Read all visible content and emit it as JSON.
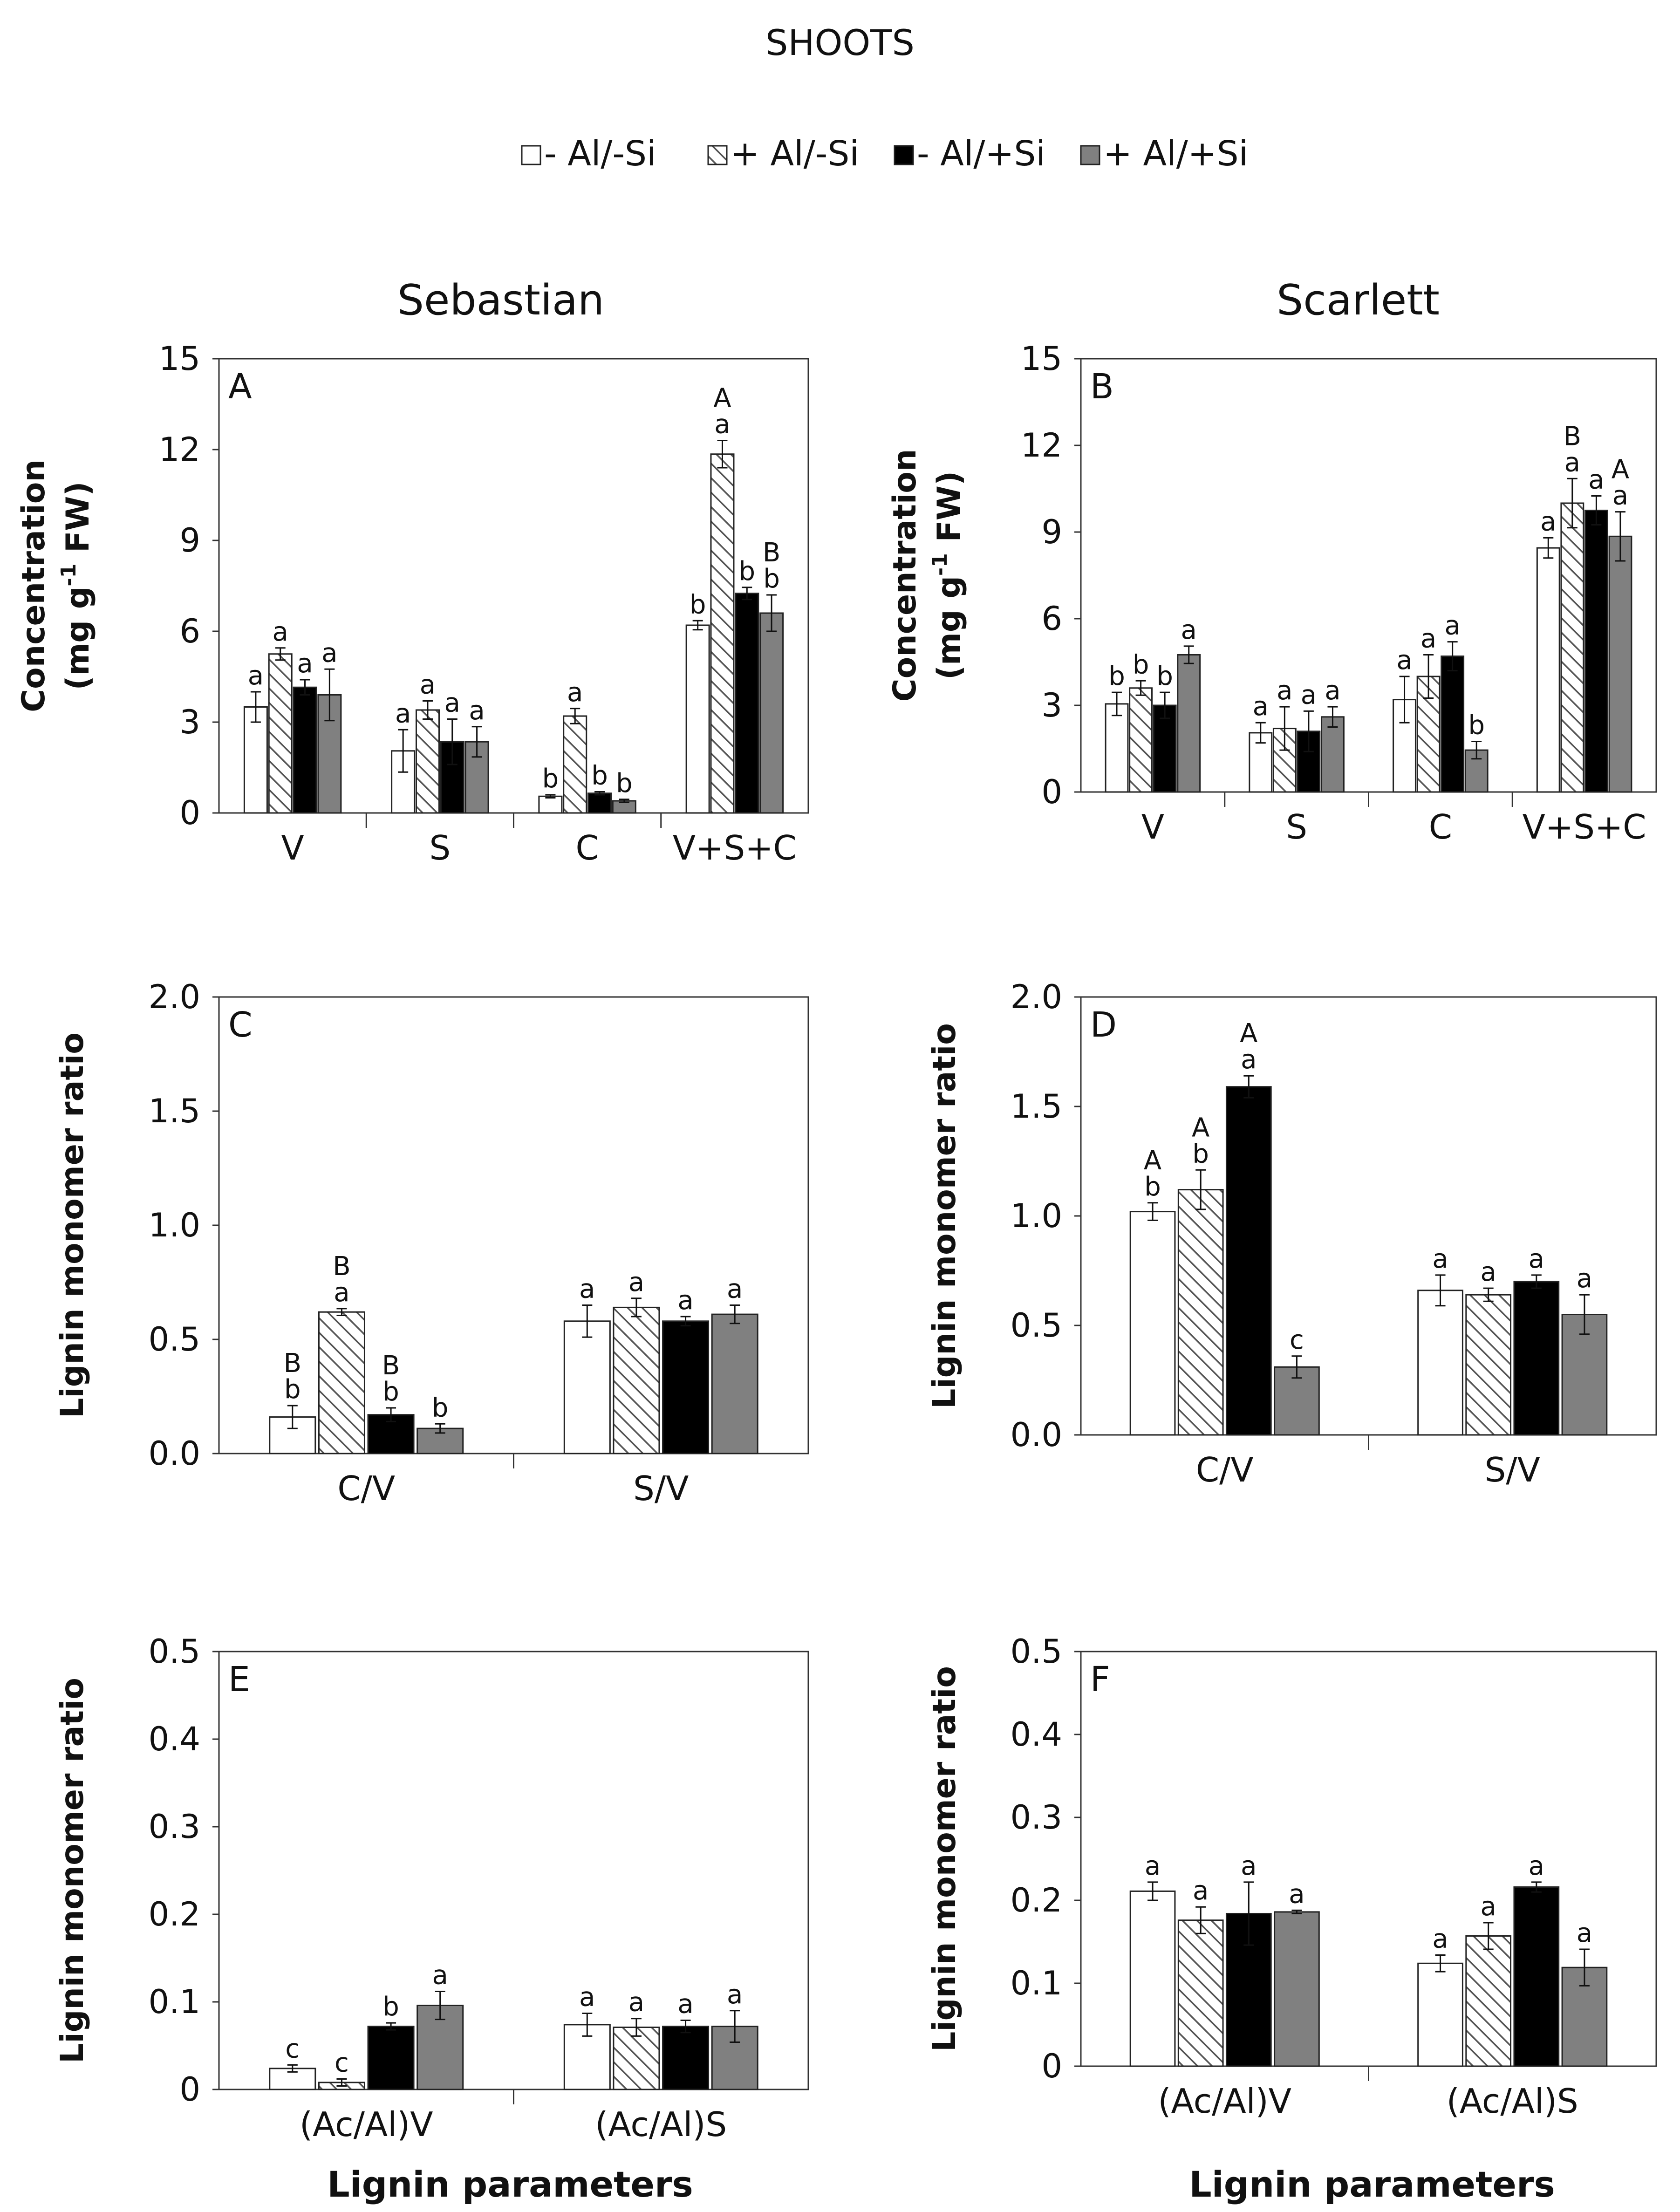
{
  "figure_title": "SHOOTS",
  "legend": [
    {
      "label": "- Al/-Si",
      "fill": "#ffffff",
      "pattern": false
    },
    {
      "label": "+ Al/-Si",
      "fill": "#ffffff",
      "pattern": true
    },
    {
      "label": "- Al/+Si",
      "fill": "#000000",
      "pattern": false
    },
    {
      "label": "+ Al/+Si",
      "fill": "#808080",
      "pattern": false
    }
  ],
  "column_titles": [
    "Sebastian",
    "Scarlett"
  ],
  "x_axis_label": "Lignin parameters",
  "chart_data": [
    {
      "panel": "A",
      "type": "bar",
      "ylabel_line1": "Concentration",
      "ylabel_line2_pre": "(mg g",
      "ylabel_sup": "-1",
      "ylabel_line2_post": " FW)",
      "ylim": [
        0,
        15
      ],
      "yticks": [
        "0",
        "3",
        "6",
        "9",
        "12",
        "15"
      ],
      "categories": [
        "V",
        "S",
        "C",
        "V+S+C"
      ],
      "series": [
        {
          "name": "- Al/-Si",
          "values": [
            3.5,
            2.05,
            0.55,
            6.2
          ],
          "errors": [
            0.5,
            0.7,
            0.05,
            0.15
          ],
          "letters": [
            "a",
            "a",
            "b",
            "b"
          ]
        },
        {
          "name": "+ Al/-Si",
          "values": [
            5.25,
            3.4,
            3.2,
            11.85
          ],
          "errors": [
            0.2,
            0.3,
            0.25,
            0.45
          ],
          "letters": [
            "a",
            "a",
            "a",
            "A\na"
          ]
        },
        {
          "name": "- Al/+Si",
          "values": [
            4.15,
            2.35,
            0.65,
            7.25
          ],
          "errors": [
            0.25,
            0.75,
            0.05,
            0.2
          ],
          "letters": [
            "a",
            "a",
            "b",
            "b"
          ]
        },
        {
          "name": "+ Al/+Si",
          "values": [
            3.9,
            2.35,
            0.4,
            6.6
          ],
          "errors": [
            0.85,
            0.5,
            0.05,
            0.6
          ],
          "letters": [
            "a",
            "a",
            "b",
            "B\nb"
          ]
        }
      ]
    },
    {
      "panel": "B",
      "type": "bar",
      "ylabel_line1": "Concentration",
      "ylabel_line2_pre": "(mg g",
      "ylabel_sup": "-1",
      "ylabel_line2_post": " FW)",
      "ylim": [
        0,
        15
      ],
      "yticks": [
        "0",
        "3",
        "6",
        "9",
        "12",
        "15"
      ],
      "categories": [
        "V",
        "S",
        "C",
        "V+S+C"
      ],
      "series": [
        {
          "name": "- Al/-Si",
          "values": [
            3.05,
            2.05,
            3.2,
            8.45
          ],
          "errors": [
            0.4,
            0.35,
            0.8,
            0.35
          ],
          "letters": [
            "b",
            "a",
            "a",
            "a"
          ]
        },
        {
          "name": "+ Al/-Si",
          "values": [
            3.6,
            2.2,
            4.0,
            10.0
          ],
          "errors": [
            0.25,
            0.75,
            0.75,
            0.85
          ],
          "letters": [
            "b",
            "a",
            "a",
            "B\na"
          ]
        },
        {
          "name": "- Al/+Si",
          "values": [
            3.0,
            2.1,
            4.7,
            9.75
          ],
          "errors": [
            0.45,
            0.7,
            0.5,
            0.5
          ],
          "letters": [
            "b",
            "a",
            "a",
            "a"
          ]
        },
        {
          "name": "+ Al/+Si",
          "values": [
            4.75,
            2.6,
            1.45,
            8.85
          ],
          "errors": [
            0.3,
            0.35,
            0.3,
            0.85
          ],
          "letters": [
            "a",
            "a",
            "b",
            "A\na"
          ]
        }
      ]
    },
    {
      "panel": "C",
      "type": "bar",
      "ylabel_line1": "Lignin monomer ratio",
      "ylim": [
        0,
        2.0
      ],
      "yticks": [
        "0.0",
        "0.5",
        "1.0",
        "1.5",
        "2.0"
      ],
      "categories": [
        "C/V",
        "S/V"
      ],
      "series": [
        {
          "name": "- Al/-Si",
          "values": [
            0.16,
            0.58
          ],
          "errors": [
            0.05,
            0.07
          ],
          "letters": [
            "B\nb",
            "a"
          ]
        },
        {
          "name": "+ Al/-Si",
          "values": [
            0.62,
            0.64
          ],
          "errors": [
            0.015,
            0.04
          ],
          "letters": [
            "B\na",
            "a"
          ]
        },
        {
          "name": "- Al/+Si",
          "values": [
            0.17,
            0.58
          ],
          "errors": [
            0.03,
            0.02
          ],
          "letters": [
            "B\nb",
            "a"
          ]
        },
        {
          "name": "+ Al/+Si",
          "values": [
            0.11,
            0.61
          ],
          "errors": [
            0.02,
            0.04
          ],
          "letters": [
            "b",
            "a"
          ]
        }
      ]
    },
    {
      "panel": "D",
      "type": "bar",
      "ylabel_line1": "Lignin monomer ratio",
      "ylim": [
        0,
        2.0
      ],
      "yticks": [
        "0.0",
        "0.5",
        "1.0",
        "1.5",
        "2.0"
      ],
      "categories": [
        "C/V",
        "S/V"
      ],
      "series": [
        {
          "name": "- Al/-Si",
          "values": [
            1.02,
            0.66
          ],
          "errors": [
            0.04,
            0.07
          ],
          "letters": [
            "A\nb",
            "a"
          ]
        },
        {
          "name": "+ Al/-Si",
          "values": [
            1.12,
            0.64
          ],
          "errors": [
            0.09,
            0.03
          ],
          "letters": [
            "A\nb",
            "a"
          ]
        },
        {
          "name": "- Al/+Si",
          "values": [
            1.59,
            0.7
          ],
          "errors": [
            0.05,
            0.03
          ],
          "letters": [
            "A\na",
            "a"
          ]
        },
        {
          "name": "+ Al/+Si",
          "values": [
            0.31,
            0.55
          ],
          "errors": [
            0.05,
            0.09
          ],
          "letters": [
            "c",
            "a"
          ]
        }
      ]
    },
    {
      "panel": "E",
      "type": "bar",
      "ylabel_line1": "Lignin monomer ratio",
      "ylim": [
        0,
        0.5
      ],
      "yticks": [
        "0",
        "0.1",
        "0.2",
        "0.3",
        "0.4",
        "0.5"
      ],
      "categories": [
        "(Ac/Al)V",
        "(Ac/Al)S"
      ],
      "series": [
        {
          "name": "- Al/-Si",
          "values": [
            0.024,
            0.074
          ],
          "errors": [
            0.004,
            0.013
          ],
          "letters": [
            "c",
            "a"
          ]
        },
        {
          "name": "+ Al/-Si",
          "values": [
            0.008,
            0.071
          ],
          "errors": [
            0.004,
            0.01
          ],
          "letters": [
            "c",
            "a"
          ]
        },
        {
          "name": "- Al/+Si",
          "values": [
            0.072,
            0.072
          ],
          "errors": [
            0.004,
            0.007
          ],
          "letters": [
            "b",
            "a"
          ]
        },
        {
          "name": "+ Al/+Si",
          "values": [
            0.096,
            0.072
          ],
          "errors": [
            0.016,
            0.018
          ],
          "letters": [
            "a",
            "a"
          ]
        }
      ]
    },
    {
      "panel": "F",
      "type": "bar",
      "ylabel_line1": "Lignin monomer ratio",
      "ylim": [
        0,
        0.5
      ],
      "yticks": [
        "0",
        "0.1",
        "0.2",
        "0.3",
        "0.4",
        "0.5"
      ],
      "categories": [
        "(Ac/Al)V",
        "(Ac/Al)S"
      ],
      "series": [
        {
          "name": "- Al/-Si",
          "values": [
            0.211,
            0.124
          ],
          "errors": [
            0.011,
            0.01
          ],
          "letters": [
            "a",
            "a"
          ]
        },
        {
          "name": "+ Al/-Si",
          "values": [
            0.176,
            0.157
          ],
          "errors": [
            0.016,
            0.016
          ],
          "letters": [
            "a",
            "a"
          ]
        },
        {
          "name": "- Al/+Si",
          "values": [
            0.184,
            0.216
          ],
          "errors": [
            0.038,
            0.006
          ],
          "letters": [
            "a",
            "a"
          ]
        },
        {
          "name": "+ Al/+Si",
          "values": [
            0.186,
            0.119
          ],
          "errors": [
            0.002,
            0.022
          ],
          "letters": [
            "a",
            "a"
          ]
        }
      ]
    }
  ]
}
